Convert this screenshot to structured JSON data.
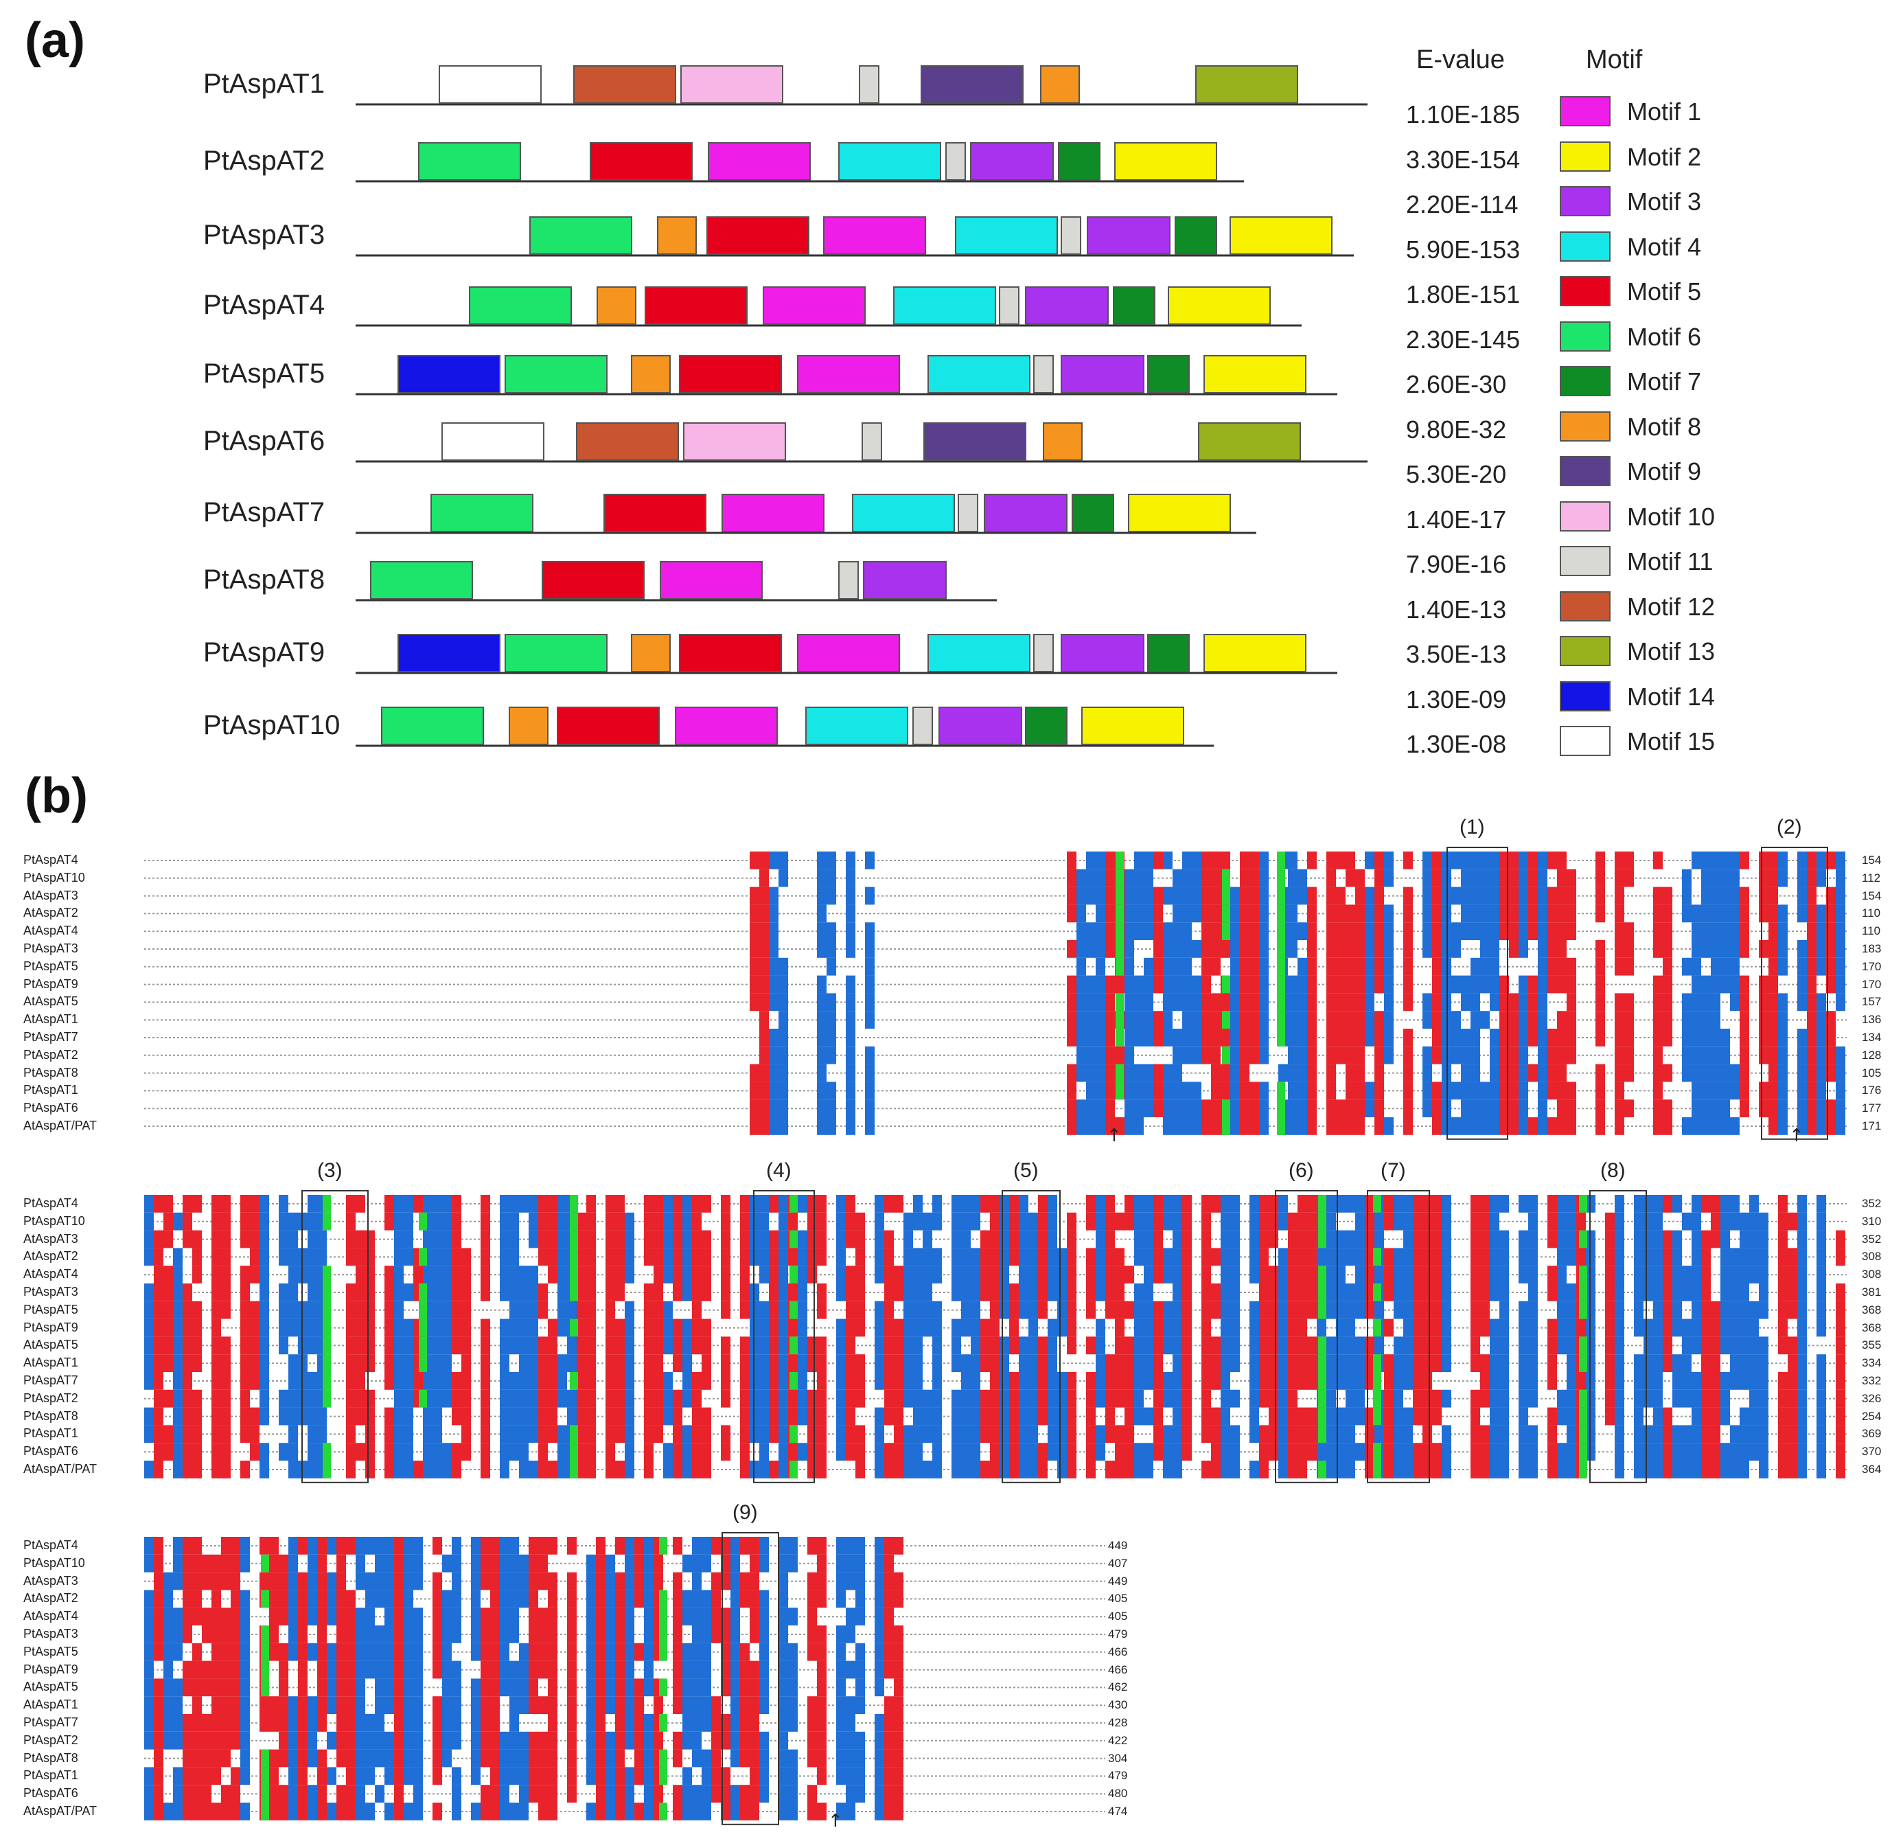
{
  "panel_a": {
    "label": "(a)",
    "legend": {
      "evalue_header": "E-value",
      "motif_header": "Motif",
      "items": [
        {
          "name": "Motif 1",
          "evalue": "1.10E-185",
          "color": "#ee1ee8"
        },
        {
          "name": "Motif 2",
          "evalue": "3.30E-154",
          "color": "#f7f200"
        },
        {
          "name": "Motif 3",
          "evalue": "2.20E-114",
          "color": "#a832ee"
        },
        {
          "name": "Motif 4",
          "evalue": "5.90E-153",
          "color": "#16e6e6"
        },
        {
          "name": "Motif 5",
          "evalue": "1.80E-151",
          "color": "#e5001c"
        },
        {
          "name": "Motif 6",
          "evalue": "2.30E-145",
          "color": "#1de56c"
        },
        {
          "name": "Motif 7",
          "evalue": "2.60E-30",
          "color": "#0f8c25"
        },
        {
          "name": "Motif 8",
          "evalue": "9.80E-32",
          "color": "#f59520"
        },
        {
          "name": "Motif 9",
          "evalue": "5.30E-20",
          "color": "#5a3f8c"
        },
        {
          "name": "Motif 10",
          "evalue": "1.40E-17",
          "color": "#f7b6e6"
        },
        {
          "name": "Motif 11",
          "evalue": "7.90E-16",
          "color": "#d8d8d4"
        },
        {
          "name": "Motif 12",
          "evalue": "1.40E-13",
          "color": "#c8552f"
        },
        {
          "name": "Motif 13",
          "evalue": "3.50E-13",
          "color": "#98b21e"
        },
        {
          "name": "Motif 14",
          "evalue": "1.30E-09",
          "color": "#1414e6"
        },
        {
          "name": "Motif 15",
          "evalue": "1.30E-08",
          "color": "#ffffff"
        }
      ]
    },
    "proteins": [
      {
        "name": "PtAspAT1",
        "motifs": [
          15,
          12,
          10,
          11,
          9,
          8,
          13
        ]
      },
      {
        "name": "PtAspAT2",
        "motifs": [
          6,
          5,
          1,
          4,
          11,
          3,
          7,
          2
        ]
      },
      {
        "name": "PtAspAT3",
        "motifs": [
          6,
          8,
          5,
          1,
          4,
          11,
          3,
          7,
          2
        ]
      },
      {
        "name": "PtAspAT4",
        "motifs": [
          6,
          8,
          5,
          1,
          4,
          11,
          3,
          7,
          2
        ]
      },
      {
        "name": "PtAspAT5",
        "motifs": [
          14,
          6,
          8,
          5,
          1,
          4,
          11,
          3,
          7,
          2
        ]
      },
      {
        "name": "PtAspAT6",
        "motifs": [
          15,
          12,
          10,
          11,
          9,
          8,
          13
        ]
      },
      {
        "name": "PtAspAT7",
        "motifs": [
          6,
          5,
          1,
          4,
          11,
          3,
          7,
          2
        ]
      },
      {
        "name": "PtAspAT8",
        "motifs": [
          6,
          5,
          1,
          11,
          3
        ]
      },
      {
        "name": "PtAspAT9",
        "motifs": [
          14,
          6,
          8,
          5,
          1,
          4,
          11,
          3,
          7,
          2
        ]
      },
      {
        "name": "PtAspAT10",
        "motifs": [
          6,
          8,
          5,
          1,
          4,
          11,
          3,
          7,
          2
        ]
      }
    ]
  },
  "panel_b": {
    "label": "(b)",
    "blocks": [
      {
        "names": [
          "PtAspAT4",
          "PtAspAT10",
          "AtAspAT3",
          "AtAspAT2",
          "AtAspAT4",
          "PtAspAT3",
          "PtAspAT5",
          "PtAspAT9",
          "AtAspAT5",
          "AtAspAT1",
          "PtAspAT7",
          "PtAspAT2",
          "PtAspAT8",
          "PtAspAT1",
          "PtAspAT6",
          "AtAspAT/PAT"
        ],
        "end_numbers": [
          "154",
          "112",
          "154",
          "110",
          "110",
          "183",
          "170",
          "170",
          "157",
          "136",
          "134",
          "128",
          "105",
          "176",
          "177",
          "171"
        ],
        "box_labels": [
          "(1)",
          "(2)"
        ]
      },
      {
        "names": [
          "PtAspAT4",
          "PtAspAT10",
          "AtAspAT3",
          "AtAspAT2",
          "AtAspAT4",
          "PtAspAT3",
          "PtAspAT5",
          "PtAspAT9",
          "AtAspAT5",
          "AtAspAT1",
          "PtAspAT7",
          "PtAspAT2",
          "PtAspAT8",
          "PtAspAT1",
          "PtAspAT6",
          "AtAspAT/PAT"
        ],
        "end_numbers": [
          "352",
          "310",
          "352",
          "308",
          "308",
          "381",
          "368",
          "368",
          "355",
          "334",
          "332",
          "326",
          "254",
          "369",
          "370",
          "364"
        ],
        "box_labels": [
          "(3)",
          "(4)",
          "(5)",
          "(6)",
          "(7)",
          "(8)"
        ]
      },
      {
        "names": [
          "PtAspAT4",
          "PtAspAT10",
          "AtAspAT3",
          "AtAspAT2",
          "AtAspAT4",
          "PtAspAT3",
          "PtAspAT5",
          "PtAspAT9",
          "AtAspAT5",
          "AtAspAT1",
          "PtAspAT7",
          "PtAspAT2",
          "PtAspAT8",
          "PtAspAT1",
          "PtAspAT6",
          "AtAspAT/PAT"
        ],
        "end_numbers": [
          "449",
          "407",
          "449",
          "405",
          "405",
          "479",
          "466",
          "466",
          "462",
          "430",
          "428",
          "422",
          "304",
          "479",
          "480",
          "474"
        ],
        "box_labels": [
          "(9)"
        ]
      }
    ],
    "colors": {
      "red": "#e8232b",
      "blue": "#1f6fd6",
      "green": "#27d936",
      "text": "#444444"
    }
  }
}
